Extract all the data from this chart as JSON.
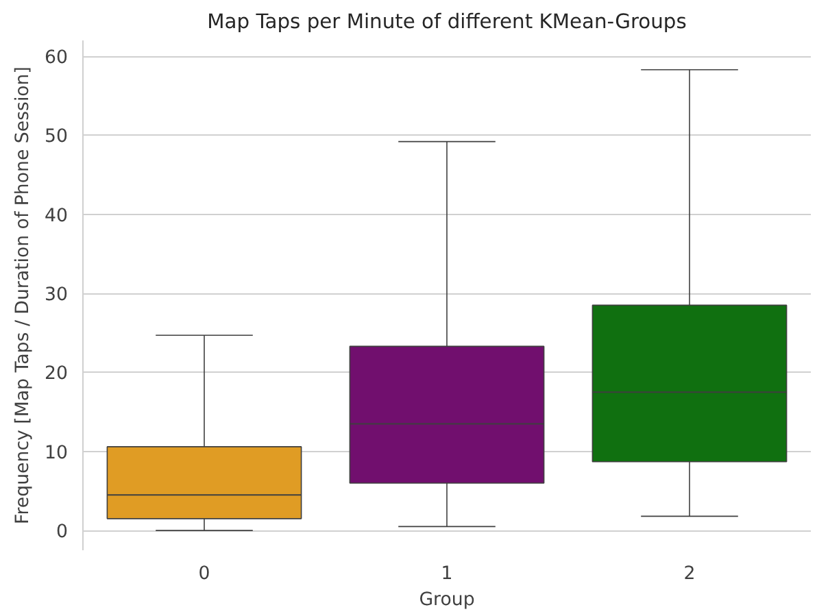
{
  "chart_data": {
    "type": "box",
    "title": "Map Taps per Minute of different KMean-Groups",
    "xlabel": "Group",
    "ylabel": "Frequency [Map Taps / Duration of Phone Session]",
    "categories": [
      "0",
      "1",
      "2"
    ],
    "boxes": [
      {
        "low": 0,
        "q1": 1.5,
        "median": 4.5,
        "q3": 10.6,
        "high": 24.7
      },
      {
        "low": 0.5,
        "q1": 6,
        "median": 13.5,
        "q3": 23.3,
        "high": 49.2
      },
      {
        "low": 1.8,
        "q1": 8.7,
        "median": 17.5,
        "q3": 28.5,
        "high": 58.3
      }
    ],
    "colors": [
      "#e09c24",
      "#710f6e",
      "#107010"
    ],
    "ylim": [
      -2.5,
      62
    ],
    "yticks": [
      0,
      10,
      20,
      30,
      40,
      50,
      60
    ],
    "grid": "y"
  }
}
